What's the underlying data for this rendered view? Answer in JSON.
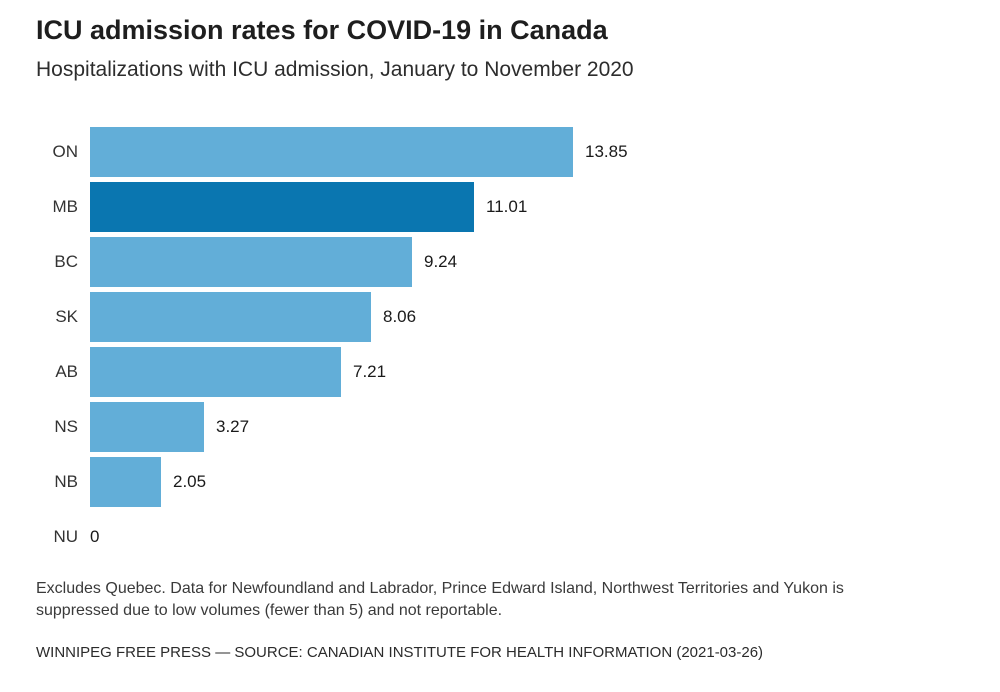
{
  "header": {
    "title": "ICU admission rates for COVID-19 in Canada",
    "subtitle": "Hospitalizations with ICU admission, January to November 2020"
  },
  "chart_data": {
    "type": "bar",
    "orientation": "horizontal",
    "title": "ICU admission rates for COVID-19 in Canada",
    "subtitle": "Hospitalizations with ICU admission, January to November 2020",
    "categories": [
      "ON",
      "MB",
      "BC",
      "SK",
      "AB",
      "NS",
      "NB",
      "NU"
    ],
    "values": [
      13.85,
      11.01,
      9.24,
      8.06,
      7.21,
      3.27,
      2.05,
      0
    ],
    "value_labels": [
      "13.85",
      "11.01",
      "9.24",
      "8.06",
      "7.21",
      "3.27",
      "2.05",
      "0"
    ],
    "xlim": [
      0,
      14
    ],
    "grid": false,
    "legend": "none",
    "value_label_position": "right-of-bar",
    "bar_color": "#62aed8",
    "highlight": {
      "category": "MB",
      "color": "#0a76b0"
    }
  },
  "footnote": "Excludes Quebec. Data for Newfoundland and Labrador, Prince Edward Island, Northwest Territories and Yukon is suppressed due to low volumes (fewer than 5) and not reportable.",
  "source": "WINNIPEG FREE PRESS — SOURCE: CANADIAN INSTITUTE FOR HEALTH INFORMATION (2021-03-26)"
}
